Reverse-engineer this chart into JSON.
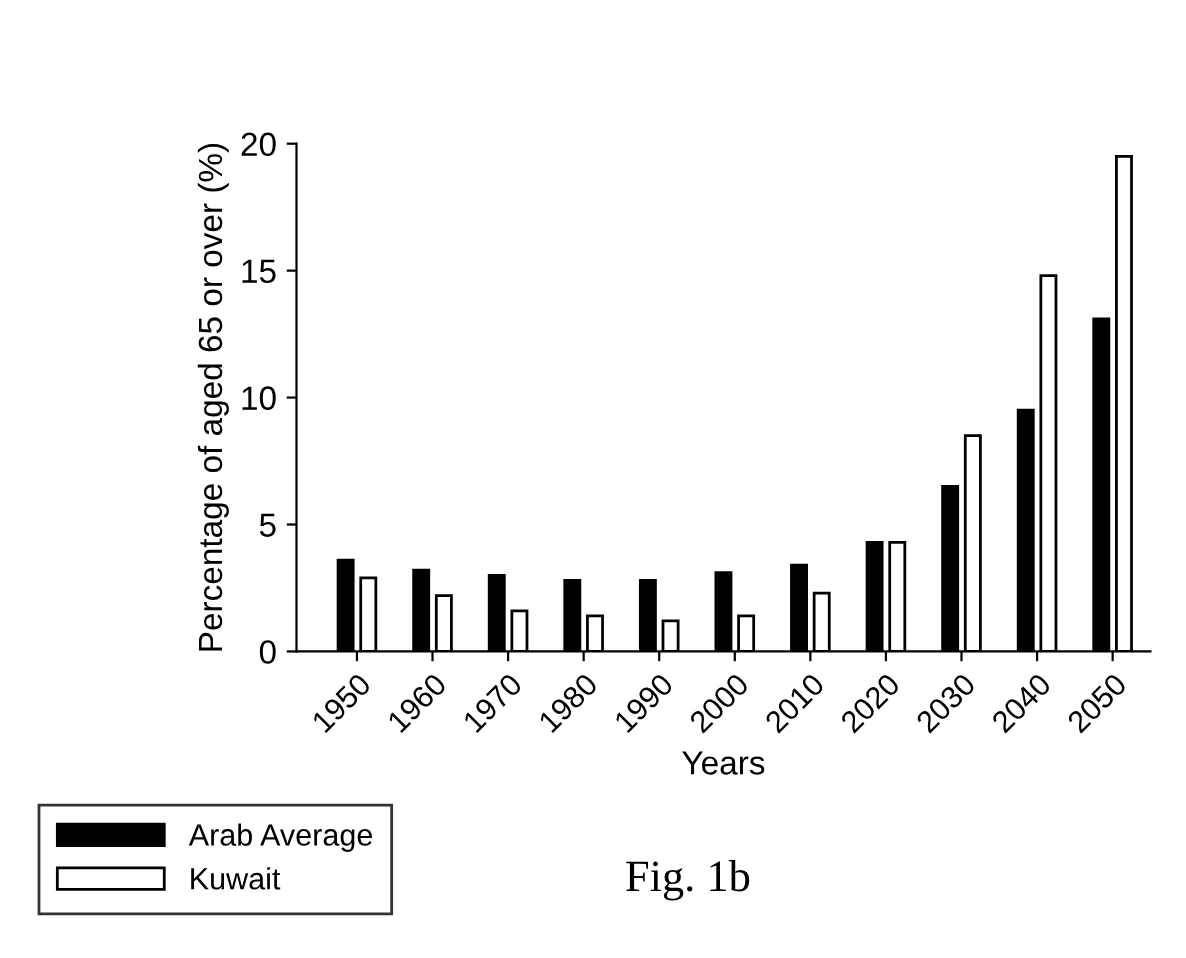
{
  "chart_data": {
    "type": "bar",
    "xlabel": "Years",
    "ylabel": "Percentage of aged 65 or over (%)",
    "categories": [
      "1950",
      "1960",
      "1970",
      "1980",
      "1990",
      "2000",
      "2010",
      "2020",
      "2030",
      "2040",
      "2050"
    ],
    "series": [
      {
        "name": "Arab Average",
        "color": "#000000",
        "values": [
          3.6,
          3.2,
          3.0,
          2.8,
          2.8,
          3.1,
          3.4,
          4.3,
          6.5,
          9.5,
          13.1
        ]
      },
      {
        "name": "Kuwait",
        "color": "#ffffff",
        "values": [
          2.9,
          2.2,
          1.6,
          1.4,
          1.2,
          1.4,
          2.3,
          4.3,
          8.5,
          14.8,
          19.5
        ]
      }
    ],
    "ylim": [
      0,
      20
    ],
    "yticks": [
      0,
      5,
      10,
      15,
      20
    ],
    "grid": false,
    "legend": "bottom left",
    "annotations": [
      "Fig. 1b"
    ]
  }
}
